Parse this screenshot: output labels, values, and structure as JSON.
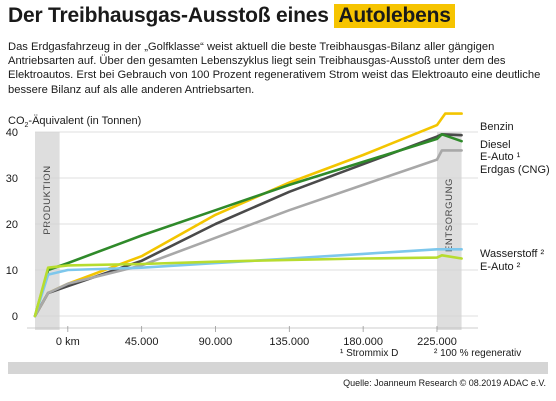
{
  "header": {
    "title_plain": "Der Treibhausgas-Ausstoß eines ",
    "title_highlight": "Autolebens",
    "intro": "Das Erdgasfahrzeug in der „Golfklasse“ weist aktuell die beste Treibhausgas-Bilanz aller gängigen Antriebsarten auf. Über den gesamten Lebenszyklus liegt sein Treibhausgas-Ausstoß unter dem des Elektroautos. Erst bei Gebrauch von 100 Prozent regenerativem Strom weist das Elektroauto eine deutliche bessere Bilanz auf als alle anderen Antriebsarten.",
    "highlight_color": "#f6c400"
  },
  "footer": {
    "source": "Quelle:  Joanneum Research   © 08.2019 ADAC e.V."
  },
  "chart_data": {
    "type": "line",
    "ylabel": {
      "prefix": "CO",
      "sub": "2",
      "suffix": "-Äquivalent (in Tonnen)"
    },
    "ylim": [
      0,
      40
    ],
    "yticks": [
      0,
      10,
      20,
      30,
      40
    ],
    "xlim": [
      -20000,
      250000
    ],
    "xticks": [
      {
        "value": 0,
        "label": "0 km"
      },
      {
        "value": 45000,
        "label": "45.000"
      },
      {
        "value": 90000,
        "label": "90.000"
      },
      {
        "value": 135000,
        "label": "135.000"
      },
      {
        "value": 180000,
        "label": "180.000"
      },
      {
        "value": 225000,
        "label": "225.000"
      }
    ],
    "grid": true,
    "phases": [
      {
        "label": "PRODUKTION",
        "from": -20000,
        "to": -5000
      },
      {
        "label": "ENTSORGUNG",
        "from": 225000,
        "to": 240000
      }
    ],
    "series": [
      {
        "name": "Benzin",
        "color": "#f3c500",
        "points": [
          [
            -20000,
            0
          ],
          [
            -12000,
            5
          ],
          [
            0,
            7
          ],
          [
            45000,
            13
          ],
          [
            90000,
            22
          ],
          [
            135000,
            29
          ],
          [
            180000,
            35
          ],
          [
            225000,
            41.5
          ],
          [
            230000,
            44
          ],
          [
            240000,
            44
          ]
        ]
      },
      {
        "name": "Diesel",
        "color": "#4a4a4a",
        "points": [
          [
            -20000,
            0
          ],
          [
            -12000,
            5
          ],
          [
            0,
            6.5
          ],
          [
            45000,
            12
          ],
          [
            90000,
            20
          ],
          [
            135000,
            27
          ],
          [
            180000,
            33
          ],
          [
            225000,
            39
          ],
          [
            228000,
            39.5
          ],
          [
            240000,
            39.3
          ]
        ]
      },
      {
        "name": "E-Auto ¹",
        "color": "#2f8a2a",
        "points": [
          [
            -20000,
            0
          ],
          [
            -12000,
            10
          ],
          [
            0,
            11.5
          ],
          [
            45000,
            17.5
          ],
          [
            90000,
            23
          ],
          [
            135000,
            28.5
          ],
          [
            180000,
            33.5
          ],
          [
            225000,
            38.5
          ],
          [
            228000,
            39.5
          ],
          [
            240000,
            38
          ]
        ]
      },
      {
        "name": "Erdgas (CNG)",
        "color": "#a8a8a8",
        "points": [
          [
            -20000,
            0
          ],
          [
            -12000,
            5
          ],
          [
            0,
            7
          ],
          [
            45000,
            11
          ],
          [
            90000,
            17
          ],
          [
            135000,
            23
          ],
          [
            180000,
            28.5
          ],
          [
            225000,
            34
          ],
          [
            228000,
            36
          ],
          [
            240000,
            36
          ]
        ]
      },
      {
        "name": "Wasserstoff ²",
        "color": "#7dc7ec",
        "points": [
          [
            -20000,
            0
          ],
          [
            -12000,
            9
          ],
          [
            0,
            10
          ],
          [
            45000,
            10.5
          ],
          [
            90000,
            11.5
          ],
          [
            135000,
            12.5
          ],
          [
            180000,
            13.5
          ],
          [
            225000,
            14.5
          ],
          [
            240000,
            14.5
          ]
        ]
      },
      {
        "name": "E-Auto ²",
        "color": "#b7dc2f",
        "points": [
          [
            -20000,
            0
          ],
          [
            -12000,
            10.5
          ],
          [
            0,
            11
          ],
          [
            45000,
            11.3
          ],
          [
            90000,
            11.8
          ],
          [
            135000,
            12.2
          ],
          [
            180000,
            12.5
          ],
          [
            225000,
            12.7
          ],
          [
            228000,
            13.2
          ],
          [
            240000,
            12.5
          ]
        ]
      }
    ],
    "footnotes": [
      "¹ Strommix D",
      "² 100 % regenerativ"
    ]
  }
}
